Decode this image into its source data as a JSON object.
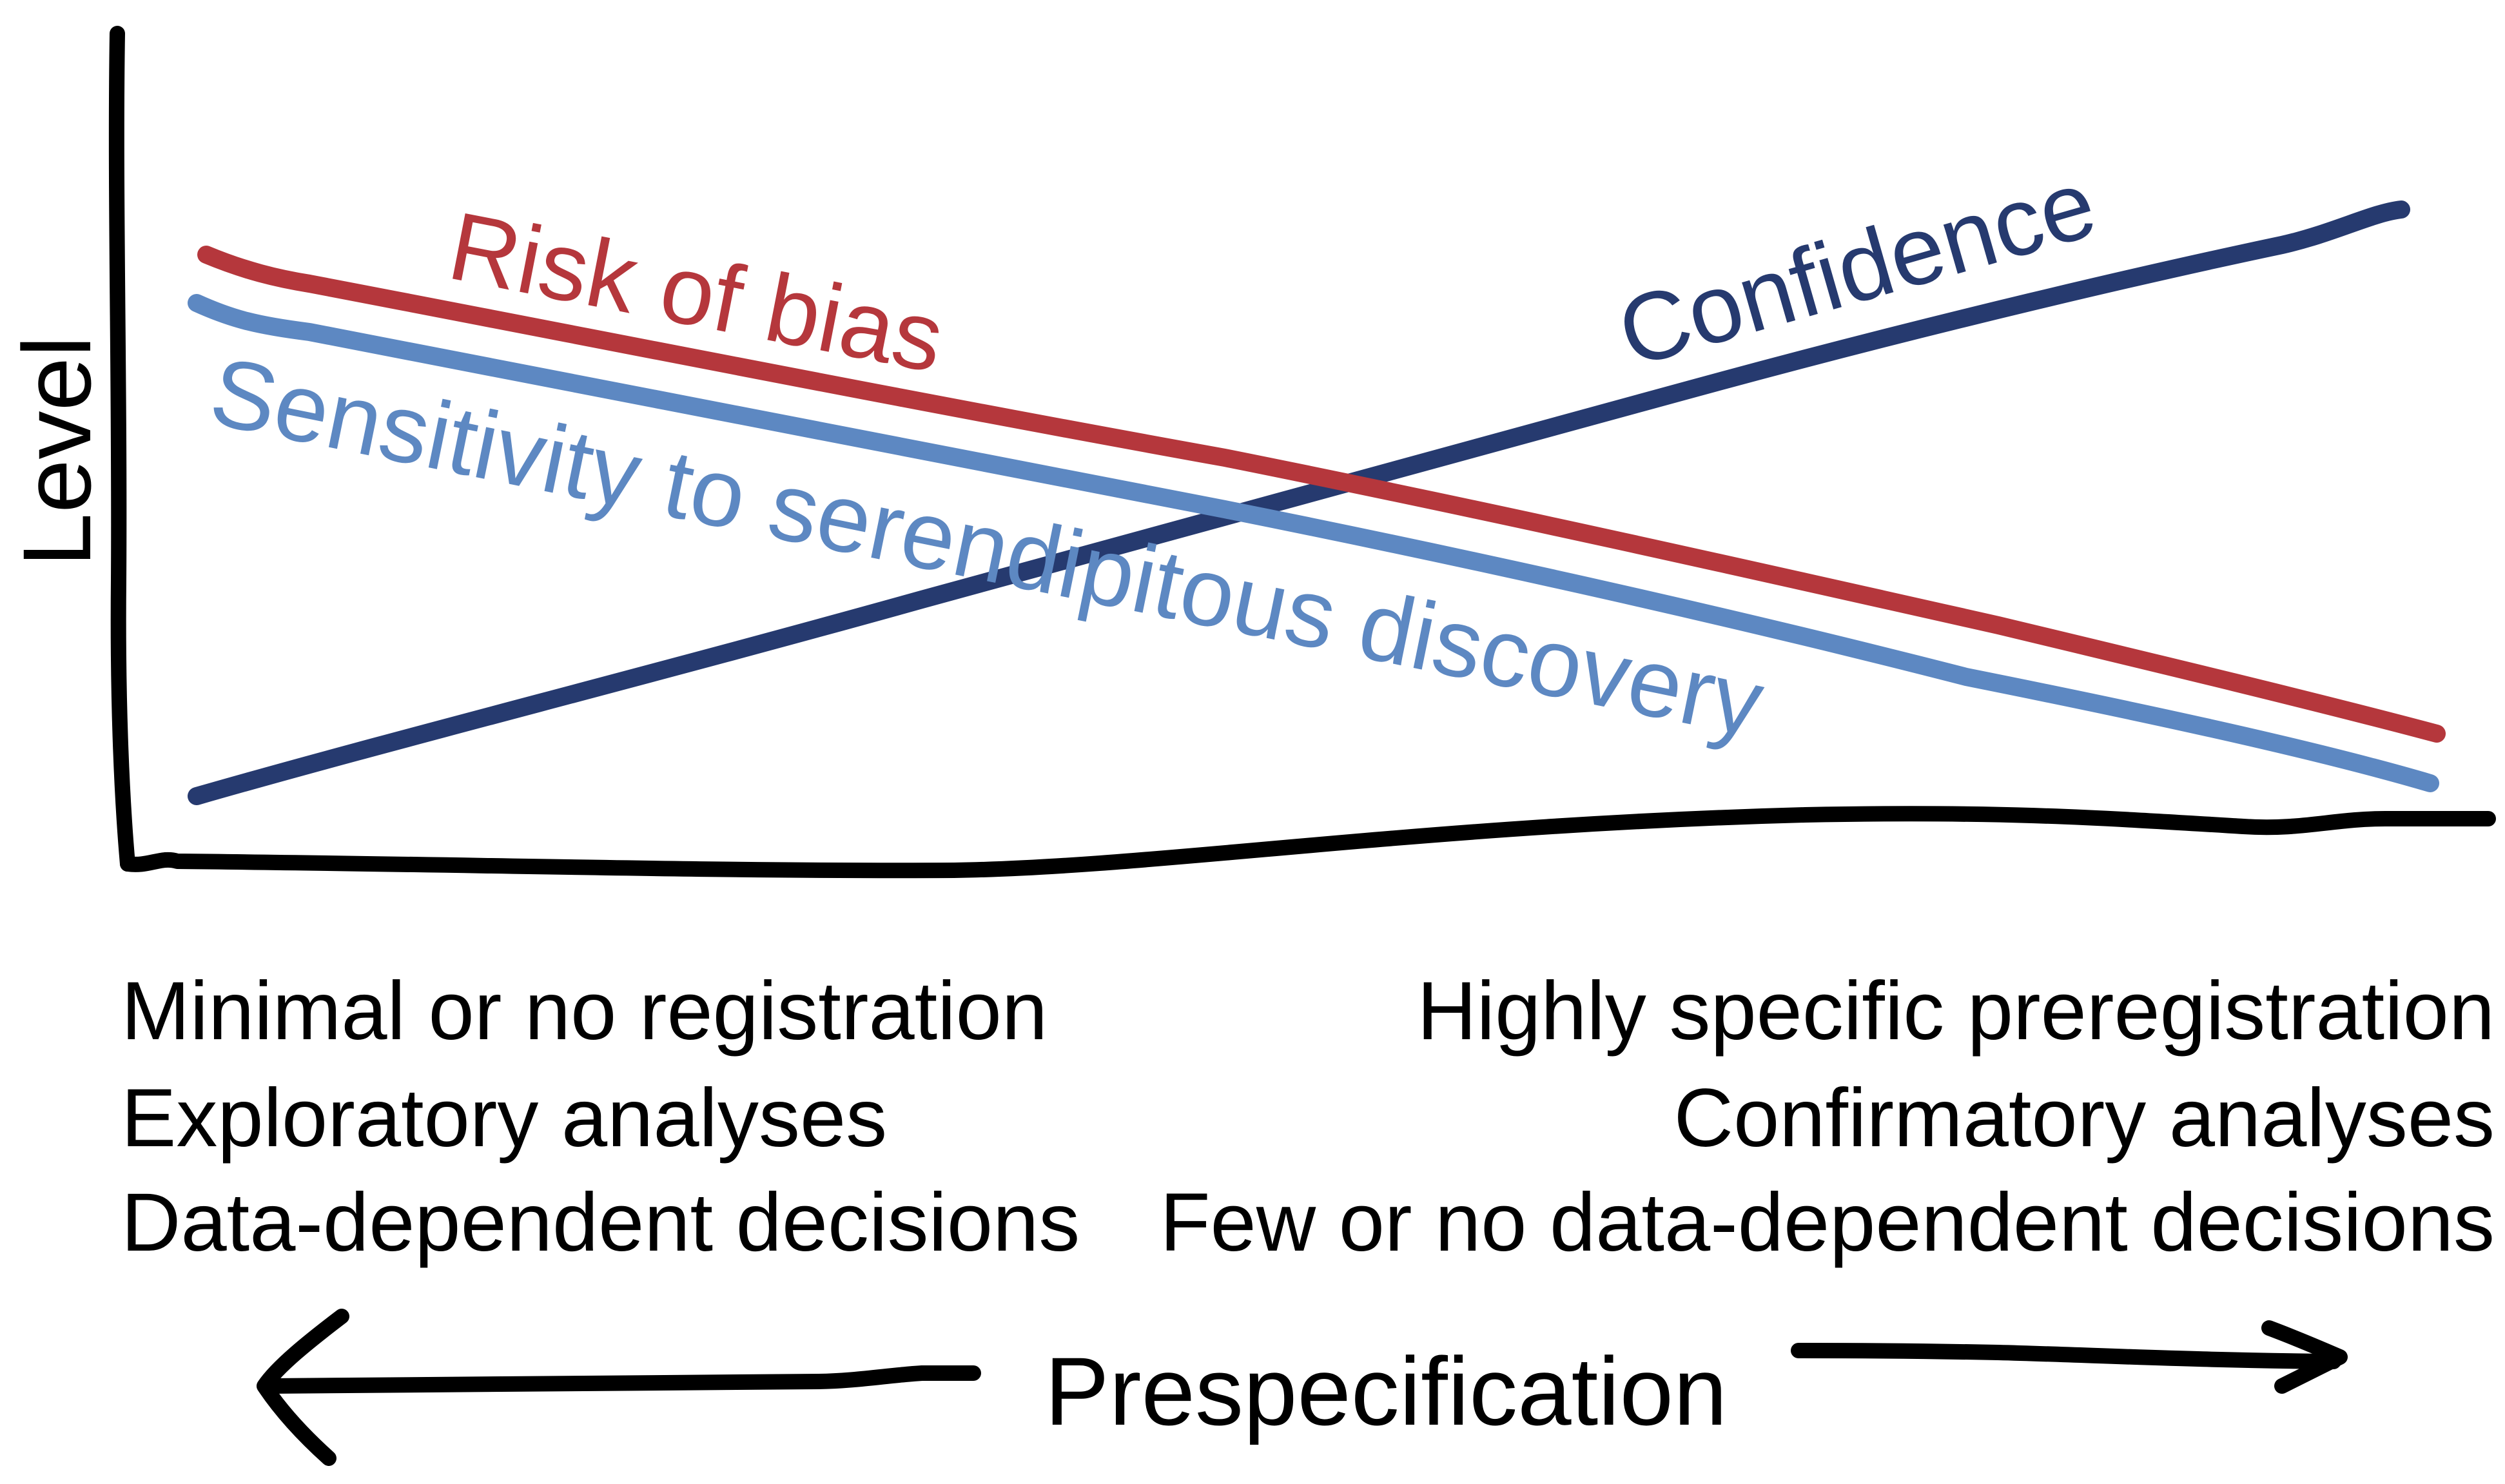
{
  "y_axis": {
    "label": "Level"
  },
  "x_axis": {
    "label": "Prespecification"
  },
  "curves": {
    "risk_of_bias": {
      "label": "Risk of bias",
      "color": "#B5373C",
      "trend": "decreasing"
    },
    "sensitivity": {
      "label": "Sensitivity to serendipitous discovery",
      "color": "#5D88C2",
      "trend": "decreasing"
    },
    "confidence": {
      "label": "Confidence",
      "color": "#263A6F",
      "trend": "increasing"
    }
  },
  "left_end": {
    "lines": [
      "Minimal or no registration",
      "Exploratory analyses",
      "Data-dependent decisions"
    ]
  },
  "right_end": {
    "lines": [
      "Highly specific preregistration",
      "Confirmatory analyses",
      "Few or no data-dependent decisions"
    ]
  },
  "colors": {
    "axis": "#000000",
    "background": "#FFFFFF"
  }
}
